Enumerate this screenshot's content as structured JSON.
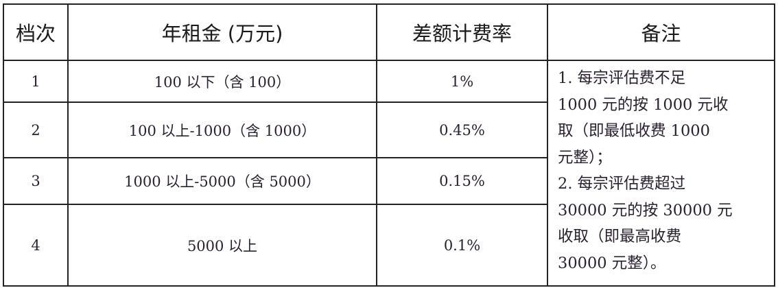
{
  "table": {
    "headers": [
      "档次",
      "年租金 (万元)",
      "差额计费率",
      "备注"
    ],
    "rows": [
      {
        "tier": "1",
        "rent": "100 以下（含 100）",
        "rate": "1%"
      },
      {
        "tier": "2",
        "rent": "100 以上-1000（含 1000）",
        "rate": "0.45%"
      },
      {
        "tier": "3",
        "rent": "1000 以上-5000（含 5000）",
        "rate": "0.15%"
      },
      {
        "tier": "4",
        "rent": "5000 以上",
        "rate": "0.1%"
      }
    ],
    "note_lines": [
      "1. 每宗评估费不足",
      "1000 元的按 1000 元收",
      "取（即最低收费 1000",
      "元整）；",
      "2. 每宗评估费超过",
      "30000 元的按 30000 元",
      "收取（即最高收费",
      "30000 元整）。"
    ]
  }
}
